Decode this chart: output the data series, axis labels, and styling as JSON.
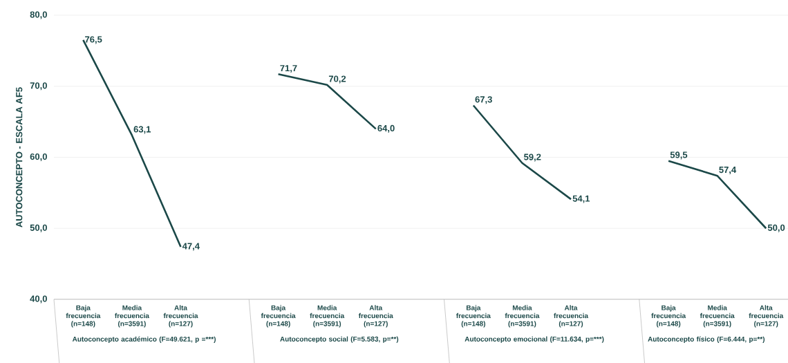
{
  "chart_data": {
    "type": "line",
    "ylabel": "AUTOCONCEPTO - ESCALA AF5",
    "categories": [
      "Baja frecuencia (n=148)",
      "Media frecuencia (n=3591)",
      "Alta frecuencia (n=127)",
      null,
      "Baja frecuencia (n=148)",
      "Media frecuencia (n=3591)",
      "Alta frecuencia (n=127)",
      null,
      "Baja frecuencia (n=148)",
      "Media frecuencia (n=3591)",
      "Alta frecuencia (n=127)",
      null,
      "Baja frecuencia (n=148)",
      "Media frecuencia (n=3591)",
      "Alta frecuencia (n=127)"
    ],
    "series": [
      {
        "color": "#1b4848",
        "values": [
          76.5,
          63.1,
          47.4,
          null,
          null,
          null,
          null,
          null,
          null,
          null,
          null,
          null,
          null,
          null,
          null
        ],
        "value_labels": [
          "76,5",
          "63,1",
          "47,4",
          null,
          null,
          null,
          null,
          null,
          null,
          null,
          null,
          null,
          null,
          null,
          null
        ]
      },
      {
        "color": "#1b4848",
        "values": [
          null,
          null,
          null,
          null,
          71.7,
          70.2,
          64.0,
          null,
          null,
          null,
          null,
          null,
          null,
          null,
          null
        ],
        "value_labels": [
          null,
          null,
          null,
          null,
          "71,7",
          "70,2",
          "64,0",
          null,
          null,
          null,
          null,
          null,
          null,
          null,
          null
        ]
      },
      {
        "color": "#1b4848",
        "values": [
          null,
          null,
          null,
          null,
          null,
          null,
          null,
          null,
          67.3,
          59.2,
          54.1,
          null,
          null,
          null,
          null
        ],
        "value_labels": [
          null,
          null,
          null,
          null,
          null,
          null,
          null,
          null,
          "67,3",
          "59,2",
          "54,1",
          null,
          null,
          null,
          null
        ]
      },
      {
        "color": "#1b4848",
        "values": [
          null,
          null,
          null,
          null,
          null,
          null,
          null,
          null,
          null,
          null,
          null,
          null,
          59.5,
          57.4,
          50.0
        ],
        "value_labels": [
          null,
          null,
          null,
          null,
          null,
          null,
          null,
          null,
          null,
          null,
          null,
          null,
          "59,5",
          "57,4",
          "50,0"
        ]
      }
    ],
    "annotations": [
      "Autoconcepto académico (F=49.621, p =***)",
      "Autoconcepto social (F=5.583, p=**)",
      "Autoconcepto emocional (F=11.634, p=***)",
      "Autoconcepto físico (F=6.444, p=**)"
    ],
    "ylim": [
      40,
      80
    ],
    "yticks": [
      {
        "value": 40,
        "label": "40,0"
      },
      {
        "value": 50,
        "label": "50,0"
      },
      {
        "value": 60,
        "label": "60,0"
      },
      {
        "value": 70,
        "label": "70,0"
      },
      {
        "value": 80,
        "label": "80,0"
      }
    ],
    "grid": "y"
  }
}
